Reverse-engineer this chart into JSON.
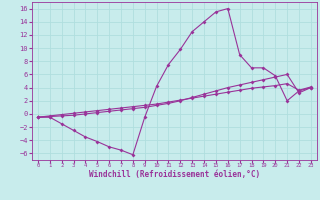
{
  "xlabel": "Windchill (Refroidissement éolien,°C)",
  "bg_color": "#c8ecec",
  "grid_color": "#b0dede",
  "line_color": "#993399",
  "xlim": [
    -0.5,
    23.5
  ],
  "ylim": [
    -7,
    17
  ],
  "xticks": [
    0,
    1,
    2,
    3,
    4,
    5,
    6,
    7,
    8,
    9,
    10,
    11,
    12,
    13,
    14,
    15,
    16,
    17,
    18,
    19,
    20,
    21,
    22,
    23
  ],
  "yticks": [
    -6,
    -4,
    -2,
    0,
    2,
    4,
    6,
    8,
    10,
    12,
    14,
    16
  ],
  "line1_x": [
    0,
    1,
    2,
    3,
    4,
    5,
    6,
    7,
    8,
    9,
    10,
    11,
    12,
    13,
    14,
    15,
    16,
    17,
    18,
    19,
    20,
    21,
    22,
    23
  ],
  "line1_y": [
    -0.5,
    -0.5,
    -1.5,
    -2.5,
    -3.5,
    -4.2,
    -5.0,
    -5.5,
    -6.2,
    -0.5,
    4.2,
    7.5,
    9.8,
    12.5,
    14.0,
    15.5,
    16.0,
    9.0,
    7.0,
    7.0,
    5.8,
    2.0,
    3.5,
    4.0
  ],
  "line2_x": [
    0,
    1,
    2,
    3,
    4,
    5,
    6,
    7,
    8,
    9,
    10,
    11,
    12,
    13,
    14,
    15,
    16,
    17,
    18,
    19,
    20,
    21,
    22,
    23
  ],
  "line2_y": [
    -0.5,
    -0.4,
    -0.3,
    -0.2,
    0.0,
    0.2,
    0.4,
    0.6,
    0.8,
    1.0,
    1.3,
    1.6,
    2.0,
    2.5,
    3.0,
    3.5,
    4.0,
    4.4,
    4.8,
    5.2,
    5.6,
    6.0,
    3.2,
    4.0
  ],
  "line3_x": [
    0,
    1,
    2,
    3,
    4,
    5,
    6,
    7,
    8,
    9,
    10,
    11,
    12,
    13,
    14,
    15,
    16,
    17,
    18,
    19,
    20,
    21,
    22,
    23
  ],
  "line3_y": [
    -0.5,
    -0.3,
    -0.1,
    0.1,
    0.3,
    0.5,
    0.7,
    0.9,
    1.1,
    1.3,
    1.5,
    1.8,
    2.1,
    2.4,
    2.7,
    3.0,
    3.3,
    3.6,
    3.9,
    4.1,
    4.3,
    4.6,
    3.6,
    4.1
  ]
}
